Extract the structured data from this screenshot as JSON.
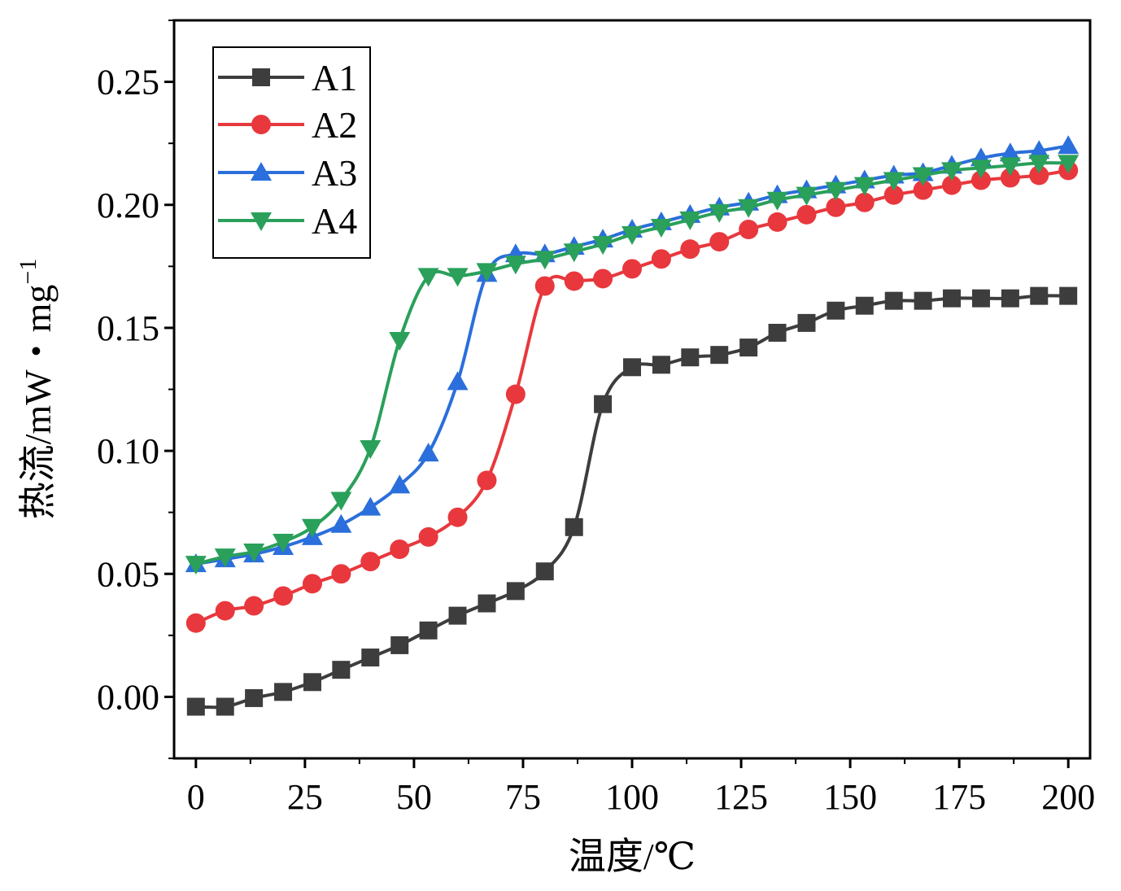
{
  "chart_data": {
    "type": "line",
    "xlabel": "温度/℃",
    "ylabel_main": "热流/mW・mg",
    "ylabel_sup": "−1",
    "xlim": [
      -5,
      205
    ],
    "ylim": [
      -0.025,
      0.275
    ],
    "x_ticks": [
      0,
      25,
      50,
      75,
      100,
      125,
      150,
      175,
      200
    ],
    "x_tick_labels": [
      "0",
      "25",
      "50",
      "75",
      "100",
      "125",
      "150",
      "175",
      "200"
    ],
    "y_ticks": [
      0.0,
      0.05,
      0.1,
      0.15,
      0.2,
      0.25
    ],
    "y_tick_labels": [
      "0.00",
      "0.05",
      "0.10",
      "0.15",
      "0.20",
      "0.25"
    ],
    "grid": false,
    "legend_position": "top-left",
    "series": [
      {
        "name": "A1",
        "color": "#3d3d3d",
        "marker": "square",
        "x": [
          0,
          6.7,
          13.3,
          20,
          26.7,
          33.3,
          40,
          46.7,
          53.3,
          60,
          66.7,
          73.3,
          80,
          86.7,
          93.3,
          100,
          106.7,
          113.3,
          120,
          126.7,
          133.3,
          140,
          146.7,
          153.3,
          160,
          166.7,
          173.3,
          180,
          186.7,
          193.3,
          200
        ],
        "y": [
          -0.004,
          -0.004,
          -0.0005,
          0.002,
          0.006,
          0.011,
          0.016,
          0.021,
          0.027,
          0.033,
          0.038,
          0.043,
          0.051,
          0.069,
          0.119,
          0.134,
          0.135,
          0.138,
          0.139,
          0.142,
          0.148,
          0.152,
          0.157,
          0.159,
          0.161,
          0.161,
          0.162,
          0.162,
          0.162,
          0.163,
          0.163
        ]
      },
      {
        "name": "A2",
        "color": "#e8383d",
        "marker": "circle",
        "x": [
          0,
          6.7,
          13.3,
          20,
          26.7,
          33.3,
          40,
          46.7,
          53.3,
          60,
          66.7,
          73.3,
          80,
          86.7,
          93.3,
          100,
          106.7,
          113.3,
          120,
          126.7,
          133.3,
          140,
          146.7,
          153.3,
          160,
          166.7,
          173.3,
          180,
          186.7,
          193.3,
          200
        ],
        "y": [
          0.03,
          0.035,
          0.037,
          0.041,
          0.046,
          0.05,
          0.055,
          0.06,
          0.065,
          0.073,
          0.088,
          0.123,
          0.167,
          0.169,
          0.17,
          0.174,
          0.178,
          0.182,
          0.185,
          0.19,
          0.193,
          0.196,
          0.199,
          0.201,
          0.204,
          0.206,
          0.208,
          0.21,
          0.211,
          0.212,
          0.214
        ]
      },
      {
        "name": "A3",
        "color": "#2a6fdb",
        "marker": "triangle-up",
        "x": [
          0,
          6.7,
          13.3,
          20,
          26.7,
          33.3,
          40,
          46.7,
          53.3,
          60,
          66.7,
          73.3,
          80,
          86.7,
          93.3,
          100,
          106.7,
          113.3,
          120,
          126.7,
          133.3,
          140,
          146.7,
          153.3,
          160,
          166.7,
          173.3,
          180,
          186.7,
          193.3,
          200
        ],
        "y": [
          0.054,
          0.056,
          0.058,
          0.061,
          0.065,
          0.07,
          0.077,
          0.086,
          0.099,
          0.128,
          0.172,
          0.18,
          0.18,
          0.183,
          0.186,
          0.19,
          0.193,
          0.196,
          0.199,
          0.201,
          0.204,
          0.206,
          0.208,
          0.21,
          0.212,
          0.213,
          0.216,
          0.219,
          0.221,
          0.222,
          0.224
        ]
      },
      {
        "name": "A4",
        "color": "#2aa05a",
        "marker": "triangle-down",
        "x": [
          0,
          6.7,
          13.3,
          20,
          26.7,
          33.3,
          40,
          46.7,
          53.3,
          60,
          66.7,
          73.3,
          80,
          86.7,
          93.3,
          100,
          106.7,
          113.3,
          120,
          126.7,
          133.3,
          140,
          146.7,
          153.3,
          160,
          166.7,
          173.3,
          180,
          186.7,
          193.3,
          200
        ],
        "y": [
          0.054,
          0.057,
          0.059,
          0.063,
          0.069,
          0.08,
          0.101,
          0.145,
          0.171,
          0.171,
          0.173,
          0.176,
          0.178,
          0.181,
          0.184,
          0.188,
          0.191,
          0.194,
          0.197,
          0.199,
          0.202,
          0.204,
          0.206,
          0.208,
          0.21,
          0.212,
          0.214,
          0.215,
          0.216,
          0.217,
          0.217
        ]
      }
    ]
  }
}
